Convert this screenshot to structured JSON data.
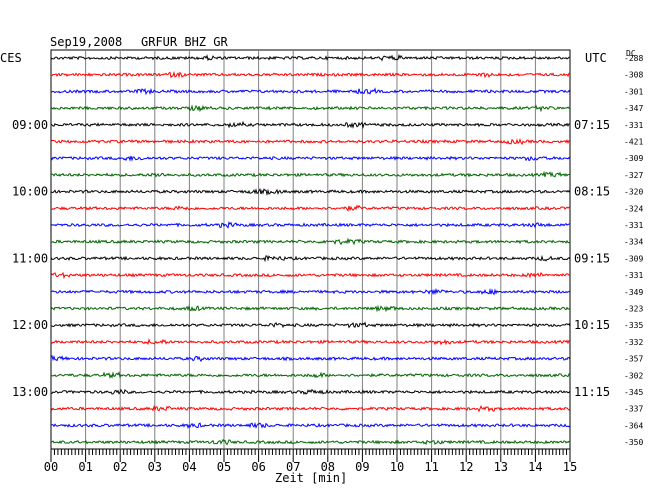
{
  "header": {
    "date": "Sep19,2008",
    "station": "GRFUR BHZ GR",
    "left_tz": "CES",
    "right_tz": "UTC",
    "dc_label": "DC"
  },
  "chart_data": {
    "type": "line",
    "title": "",
    "xlabel": "Zeit [min]",
    "ylabel": "",
    "xlim": [
      0,
      15
    ],
    "x_ticks": [
      "00",
      "01",
      "02",
      "03",
      "04",
      "05",
      "06",
      "07",
      "08",
      "09",
      "10",
      "11",
      "12",
      "13",
      "14",
      "15"
    ],
    "grid": true,
    "trace_colors": [
      "#000000",
      "#ff0000",
      "#0000ff",
      "#006400"
    ],
    "left_time_labels": [
      {
        "trace_index": 4,
        "label": "09:00"
      },
      {
        "trace_index": 8,
        "label": "10:00"
      },
      {
        "trace_index": 12,
        "label": "11:00"
      },
      {
        "trace_index": 16,
        "label": "12:00"
      },
      {
        "trace_index": 20,
        "label": "13:00"
      }
    ],
    "right_time_labels": [
      {
        "trace_index": 4,
        "label": "07:15"
      },
      {
        "trace_index": 8,
        "label": "08:15"
      },
      {
        "trace_index": 12,
        "label": "09:15"
      },
      {
        "trace_index": 16,
        "label": "10:15"
      },
      {
        "trace_index": 20,
        "label": "11:15"
      }
    ],
    "dc_offsets": [
      "-288",
      "-308",
      "-301",
      "-347",
      "-331",
      "-421",
      "-309",
      "-327",
      "-320",
      "-324",
      "-331",
      "-334",
      "-309",
      "-331",
      "-349",
      "-323",
      "-335",
      "-332",
      "-357",
      "-302",
      "-345",
      "-337",
      "-364",
      "-350"
    ]
  }
}
